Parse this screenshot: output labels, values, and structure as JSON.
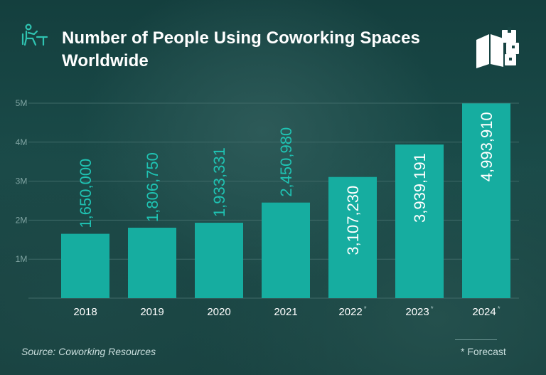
{
  "header": {
    "title": "Number of People Using Coworking Spaces Worldwide",
    "icon": "person-at-desk-icon",
    "logo": "book-boxes-logo"
  },
  "footer": {
    "source": "Source: Coworking Resources",
    "forecast_note": "* Forecast"
  },
  "colors": {
    "bar": "#16ada0",
    "label_light": "#1fc3b3",
    "label_dark": "#ffffff",
    "axis_text": "#ffffff",
    "tick_text": "#7fa3a1",
    "grid": "#3f6a68",
    "icon": "#2fc3b1"
  },
  "chart_data": {
    "type": "bar",
    "categories": [
      "2018",
      "2019",
      "2020",
      "2021",
      "2022",
      "2023",
      "2024"
    ],
    "forecast_marker": "*",
    "forecast": [
      false,
      false,
      false,
      false,
      true,
      true,
      true
    ],
    "values": [
      1650000,
      1806750,
      1933331,
      2450980,
      3107230,
      3939191,
      4993910
    ],
    "value_labels": [
      "1,650,000",
      "1,806,750",
      "1,933,331",
      "2,450,980",
      "3,107,230",
      "3,939,191",
      "4,993,910"
    ],
    "label_inside": [
      false,
      false,
      false,
      false,
      true,
      true,
      true
    ],
    "yticks": [
      1000000,
      2000000,
      3000000,
      4000000,
      5000000
    ],
    "ytick_labels": [
      "1M",
      "2M",
      "3M",
      "4M",
      "5M"
    ],
    "ylim": [
      0,
      5000000
    ],
    "grid": true,
    "title": "Number of People Using Coworking Spaces Worldwide",
    "xlabel": "",
    "ylabel": ""
  }
}
